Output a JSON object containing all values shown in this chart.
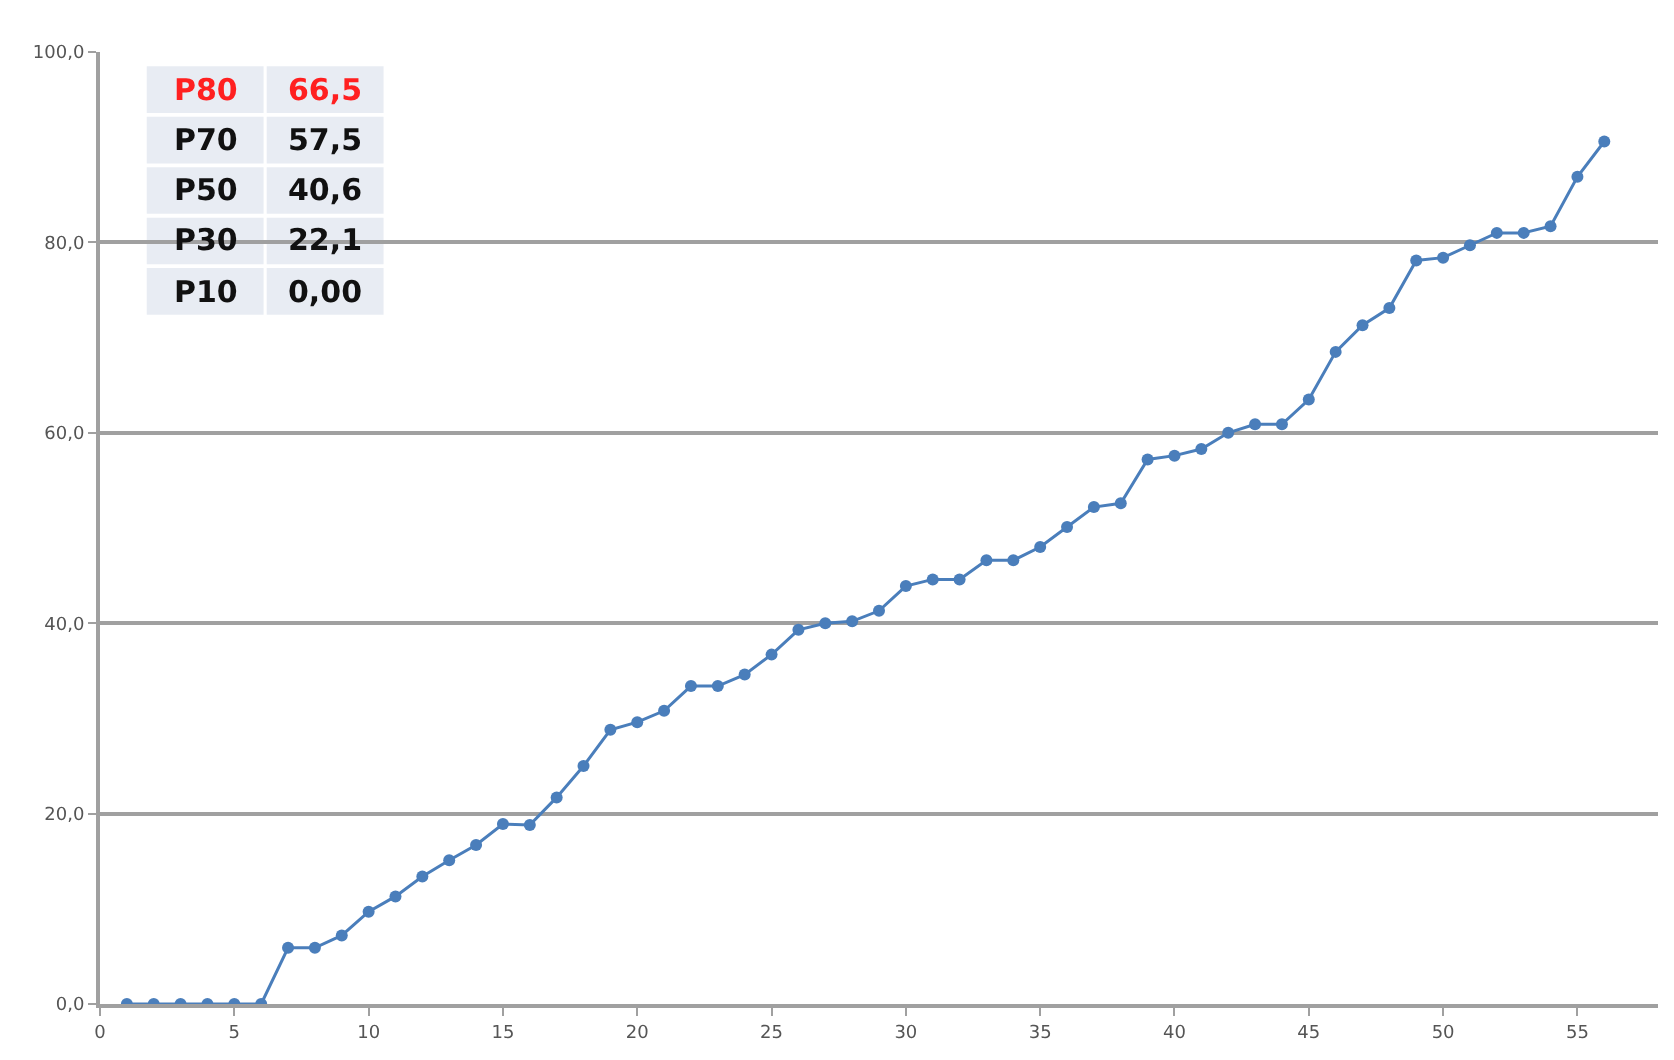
{
  "chart_data": {
    "type": "line",
    "x": [
      1,
      2,
      3,
      4,
      5,
      6,
      7,
      8,
      9,
      10,
      11,
      12,
      13,
      14,
      15,
      16,
      17,
      18,
      19,
      20,
      21,
      22,
      23,
      24,
      25,
      26,
      27,
      28,
      29,
      30,
      31,
      32,
      33,
      34,
      35,
      36,
      37,
      38,
      39,
      40,
      41,
      42,
      43,
      44,
      45,
      46,
      47,
      48,
      49,
      50,
      51,
      52,
      53,
      54,
      55,
      56
    ],
    "series": [
      {
        "color": "#4a7ebb",
        "values": [
          0,
          0,
          0,
          0,
          0,
          0,
          5.9,
          5.9,
          7.2,
          9.7,
          11.3,
          13.4,
          15.1,
          16.7,
          18.9,
          18.8,
          21.7,
          25.0,
          28.8,
          29.6,
          30.8,
          33.4,
          33.4,
          34.6,
          36.7,
          39.3,
          40.0,
          40.2,
          41.3,
          43.9,
          44.6,
          44.6,
          46.6,
          46.6,
          48.0,
          50.1,
          52.2,
          52.6,
          57.2,
          57.6,
          58.3,
          60.0,
          60.9,
          60.9,
          63.5,
          68.5,
          71.3,
          73.1,
          78.1,
          78.4,
          79.7,
          81.0,
          81.0,
          81.7,
          86.9,
          90.6
        ]
      }
    ],
    "xlim": [
      0,
      58
    ],
    "xticks": [
      0,
      5,
      10,
      15,
      20,
      25,
      30,
      35,
      40,
      45,
      50,
      55
    ],
    "ylim": [
      0,
      100
    ],
    "yticks": [
      {
        "value": 0,
        "label": "0,0"
      },
      {
        "value": 20,
        "label": "20,0"
      },
      {
        "value": 40,
        "label": "40,0"
      },
      {
        "value": 60,
        "label": "60,0"
      },
      {
        "value": 80,
        "label": "80,0"
      },
      {
        "value": 100,
        "label": "100,0"
      }
    ],
    "grid": "y",
    "marker": "circle",
    "line_style": "solid",
    "annotations": [
      "P80",
      "66,5",
      "P70",
      "57,5",
      "P50",
      "40,6",
      "P30",
      "22,1",
      "P10",
      "0,00"
    ]
  }
}
